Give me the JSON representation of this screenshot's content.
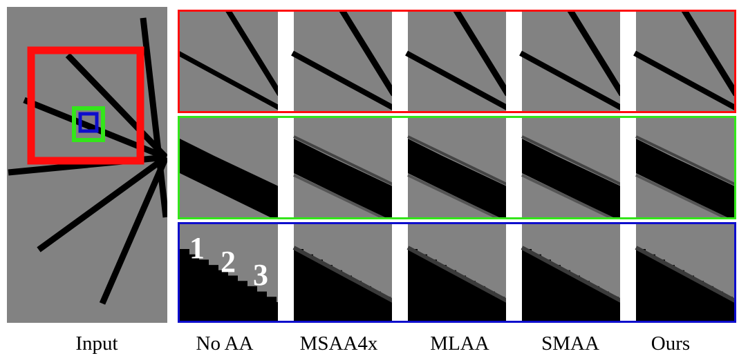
{
  "captions": {
    "input": "Input",
    "no_aa": "No AA",
    "msaa4x": "MSAA4x",
    "mlaa": "MLAA",
    "smaa": "SMAA",
    "ours": "Ours"
  },
  "zoom_numbers": [
    "1",
    "2",
    "3"
  ],
  "colors": {
    "background_gray": "#828282",
    "line_black": "#000000",
    "zoom_box_red": "#ff0d0d",
    "zoom_box_green": "#33e61a",
    "zoom_box_blue": "#0d0dcc"
  }
}
